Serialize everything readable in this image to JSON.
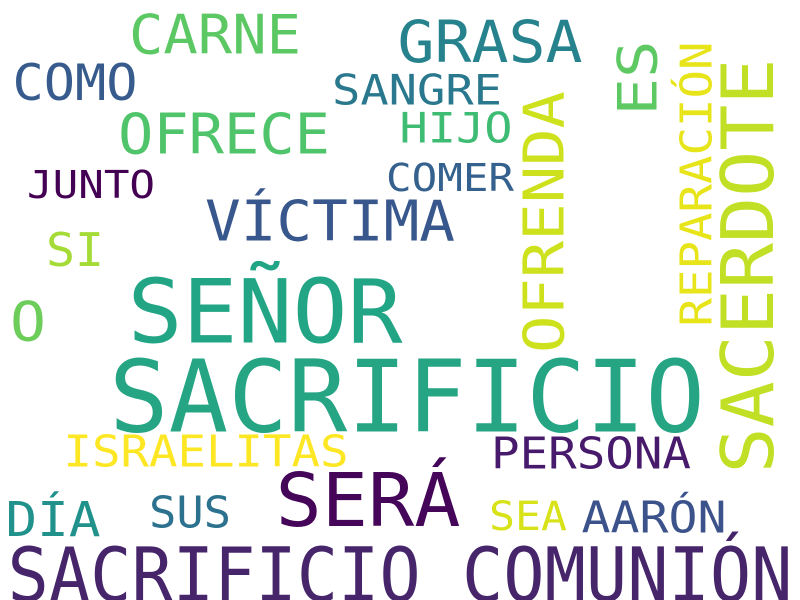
{
  "word_cloud": {
    "words": [
      {
        "id": "sacrificio-comunion",
        "text": "SACRIFICIO COMUNIÓN",
        "color": "#46256b"
      },
      {
        "id": "sacrificio",
        "text": "SACRIFICIO",
        "color": "#25a584"
      },
      {
        "id": "senor",
        "text": "SEÑOR",
        "color": "#22a585"
      },
      {
        "id": "sacerdote",
        "text": "SACERDOTE",
        "color": "#c1df24"
      },
      {
        "id": "sera",
        "text": "SERÁ",
        "color": "#450559"
      },
      {
        "id": "ofrenda",
        "text": "OFRENDA",
        "color": "#cde11d"
      },
      {
        "id": "victima",
        "text": "VÍCTIMA",
        "color": "#38578c"
      },
      {
        "id": "grasa",
        "text": "GRASA",
        "color": "#26838e"
      },
      {
        "id": "carne",
        "text": "CARNE",
        "color": "#5cc863"
      },
      {
        "id": "ofrece",
        "text": "OFRECE",
        "color": "#50c46a"
      },
      {
        "id": "es",
        "text": "ES",
        "color": "#5ec962"
      },
      {
        "id": "reparacion",
        "text": "REPARACIÓN",
        "color": "#e7e419"
      },
      {
        "id": "como",
        "text": "COMO",
        "color": "#375b8d"
      },
      {
        "id": "sangre",
        "text": "SANGRE",
        "color": "#2a788e"
      },
      {
        "id": "hijo",
        "text": "HIJO",
        "color": "#3fbc73"
      },
      {
        "id": "comer",
        "text": "COMER",
        "color": "#34618d"
      },
      {
        "id": "junto",
        "text": "JUNTO",
        "color": "#440154"
      },
      {
        "id": "si",
        "text": "SI",
        "color": "#a5db36"
      },
      {
        "id": "o",
        "text": "O",
        "color": "#6ccd5a"
      },
      {
        "id": "israelitas",
        "text": "ISRAELITAS",
        "color": "#fde725"
      },
      {
        "id": "persona",
        "text": "PERSONA",
        "color": "#481a6c"
      },
      {
        "id": "dia",
        "text": "DÍA",
        "color": "#21918c"
      },
      {
        "id": "sus",
        "text": "SUS",
        "color": "#2c728e"
      },
      {
        "id": "sea",
        "text": "SEA",
        "color": "#d8e219"
      },
      {
        "id": "aaron",
        "text": "AARÓN",
        "color": "#3b528b"
      }
    ]
  }
}
